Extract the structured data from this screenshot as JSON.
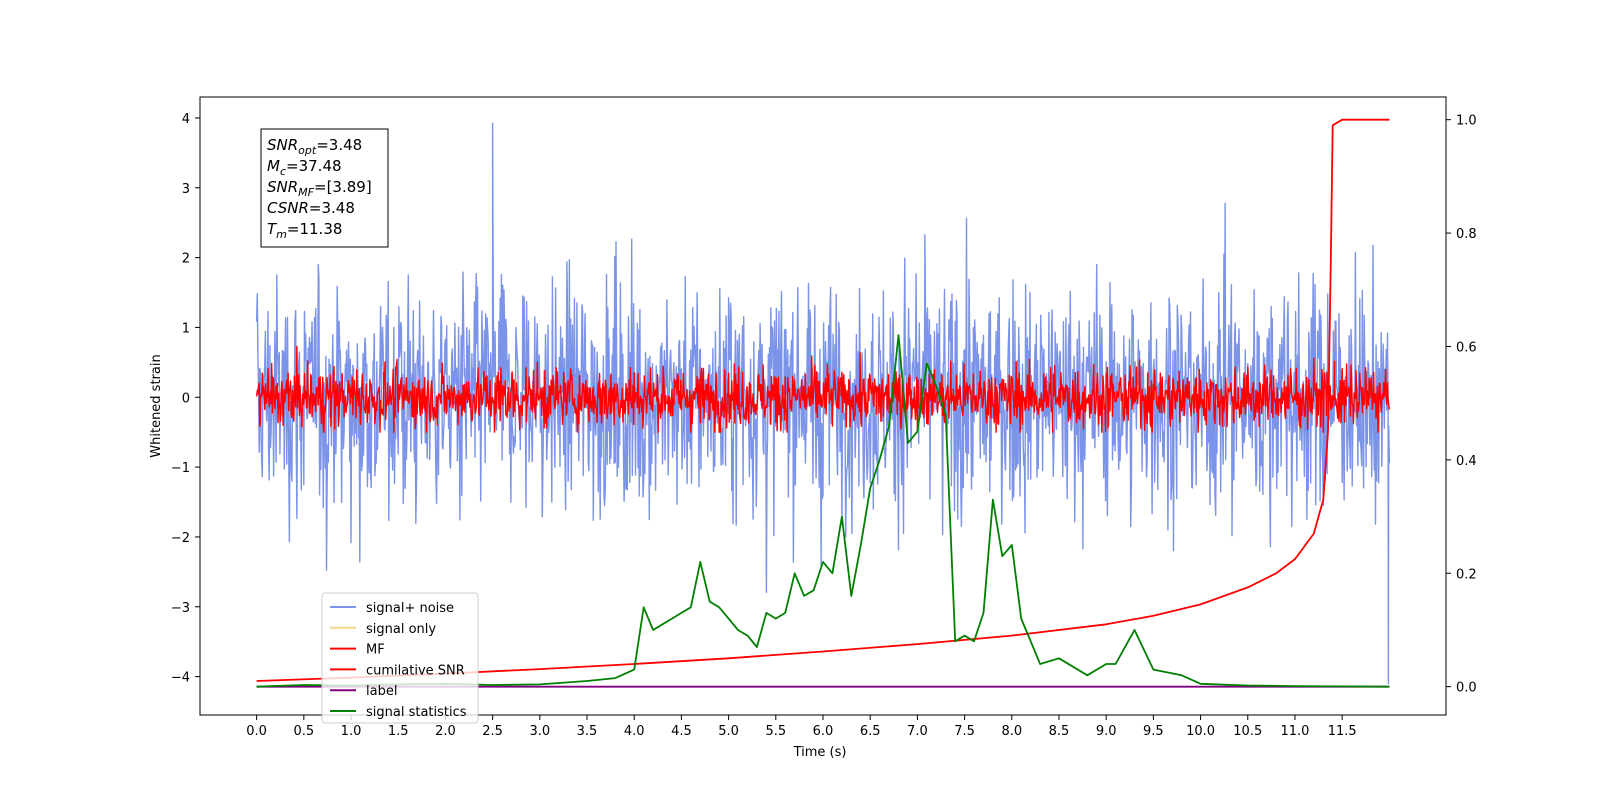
{
  "chart_data": {
    "type": "line",
    "title": "",
    "xlabel": "Time (s)",
    "ylabel": "Whitened strain",
    "xlim": [
      -0.6,
      12.6
    ],
    "ylim": [
      -4.55,
      4.3
    ],
    "y2lim": [
      -0.05,
      1.04
    ],
    "xticks": [
      "0.0",
      "0.5",
      "1.0",
      "1.5",
      "2.0",
      "2.5",
      "3.0",
      "3.5",
      "4.0",
      "4.5",
      "5.0",
      "5.5",
      "6.0",
      "6.5",
      "7.0",
      "7.5",
      "8.0",
      "8.5",
      "9.0",
      "9.5",
      "10.0",
      "10.5",
      "11.0",
      "11.5"
    ],
    "yticks": [
      "4",
      "3",
      "2",
      "1",
      "0",
      "−1",
      "−2",
      "−3",
      "−4"
    ],
    "y2ticks": [
      "1.0",
      "0.8",
      "0.6",
      "0.4",
      "0.2",
      "0.0"
    ],
    "grid": false,
    "legend_position": "lower-left",
    "annotation": {
      "lines": [
        {
          "base": "SNR",
          "sub": "opt",
          "value": "=3.48"
        },
        {
          "base": "M",
          "sub": "c",
          "value": "=37.48"
        },
        {
          "base": "SNR",
          "sub": "MF",
          "value": "=[3.89]"
        },
        {
          "base": "CSNR",
          "sub": "",
          "value": "=3.48"
        },
        {
          "base": "T",
          "sub": "m",
          "value": "=11.38"
        }
      ]
    },
    "series": [
      {
        "name": "signal+ noise",
        "color": "#7b93e8",
        "axis": "left",
        "kind": "noise",
        "amplitude": 1.0,
        "range": [
          0,
          12
        ],
        "example_values": {
          "2.5": 3.92,
          "11.99": -4.1
        }
      },
      {
        "name": "signal only",
        "color": "#f5d78a",
        "axis": "left",
        "kind": "hidden"
      },
      {
        "name": "MF",
        "color": "#ff0000",
        "axis": "left",
        "kind": "noise",
        "amplitude": 0.3,
        "range": [
          0,
          12
        ]
      },
      {
        "name": "cumilative SNR",
        "color": "#ff0000",
        "axis": "right",
        "x": [
          0.0,
          1.0,
          2.0,
          3.0,
          4.0,
          5.0,
          6.0,
          7.0,
          8.0,
          9.0,
          9.5,
          10.0,
          10.5,
          10.8,
          11.0,
          11.2,
          11.3,
          11.35,
          11.38,
          11.4,
          11.5,
          12.0
        ],
        "values": [
          0.01,
          0.016,
          0.023,
          0.031,
          0.04,
          0.05,
          0.062,
          0.075,
          0.09,
          0.11,
          0.125,
          0.145,
          0.175,
          0.2,
          0.225,
          0.27,
          0.33,
          0.45,
          0.75,
          0.99,
          1.0,
          1.0
        ]
      },
      {
        "name": "label",
        "color": "#800080",
        "axis": "right",
        "x": [
          0.0,
          12.0
        ],
        "values": [
          0.0,
          0.0
        ]
      },
      {
        "name": "signal statistics",
        "color": "#008000",
        "axis": "right",
        "x": [
          0.0,
          0.5,
          1.0,
          1.5,
          2.0,
          2.5,
          3.0,
          3.5,
          3.8,
          4.0,
          4.1,
          4.2,
          4.3,
          4.4,
          4.5,
          4.6,
          4.7,
          4.8,
          4.9,
          5.0,
          5.1,
          5.2,
          5.3,
          5.4,
          5.5,
          5.6,
          5.7,
          5.8,
          5.9,
          6.0,
          6.1,
          6.2,
          6.3,
          6.4,
          6.5,
          6.6,
          6.7,
          6.8,
          6.9,
          7.0,
          7.1,
          7.2,
          7.3,
          7.4,
          7.5,
          7.6,
          7.7,
          7.8,
          7.9,
          8.0,
          8.1,
          8.2,
          8.3,
          8.5,
          8.8,
          9.0,
          9.1,
          9.3,
          9.5,
          9.8,
          10.0,
          10.5,
          11.0,
          12.0
        ],
        "values": [
          0.0,
          0.003,
          0.002,
          0.004,
          0.005,
          0.003,
          0.004,
          0.01,
          0.015,
          0.03,
          0.14,
          0.1,
          0.11,
          0.12,
          0.13,
          0.14,
          0.22,
          0.15,
          0.14,
          0.12,
          0.1,
          0.09,
          0.07,
          0.13,
          0.12,
          0.13,
          0.2,
          0.16,
          0.17,
          0.22,
          0.2,
          0.3,
          0.16,
          0.25,
          0.35,
          0.4,
          0.46,
          0.62,
          0.43,
          0.45,
          0.57,
          0.53,
          0.48,
          0.08,
          0.09,
          0.08,
          0.13,
          0.33,
          0.23,
          0.25,
          0.12,
          0.08,
          0.04,
          0.05,
          0.02,
          0.04,
          0.04,
          0.1,
          0.03,
          0.02,
          0.005,
          0.002,
          0.001,
          0.0
        ]
      }
    ]
  }
}
